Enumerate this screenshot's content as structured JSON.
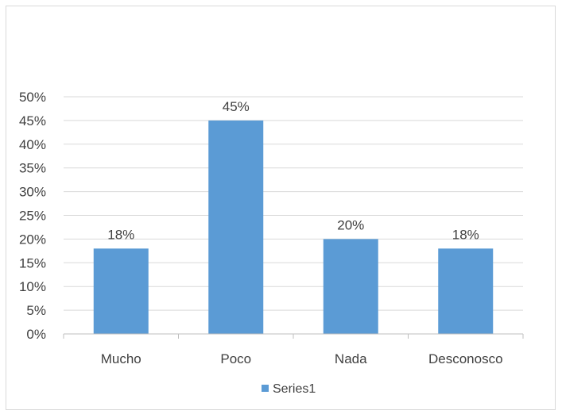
{
  "chart_data": {
    "type": "bar",
    "title": "",
    "xlabel": "",
    "ylabel": "",
    "categories": [
      "Mucho",
      "Poco",
      "Nada",
      "Desconosco"
    ],
    "series": [
      {
        "name": "Series1",
        "values": [
          0.18,
          0.45,
          0.2,
          0.18
        ],
        "data_labels": [
          "18%",
          "45%",
          "20%",
          "18%"
        ],
        "color": "#5b9bd5"
      }
    ],
    "ylim": [
      0,
      0.5
    ],
    "y_ticks": [
      0,
      0.05,
      0.1,
      0.15,
      0.2,
      0.25,
      0.3,
      0.35,
      0.4,
      0.45,
      0.5
    ],
    "y_tick_labels": [
      "0%",
      "5%",
      "10%",
      "15%",
      "20%",
      "25%",
      "30%",
      "35%",
      "40%",
      "45%",
      "50%"
    ],
    "grid": true,
    "legend": {
      "position": "bottom",
      "entries": [
        "Series1"
      ]
    },
    "colors": {
      "bar": "#5b9bd5",
      "grid": "#d9d9d9",
      "axis": "#bfbfbf",
      "text": "#404040"
    }
  }
}
